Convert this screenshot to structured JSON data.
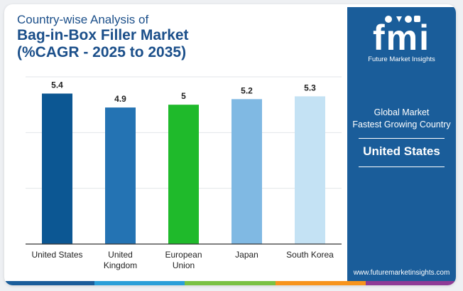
{
  "title": {
    "line1": "Country-wise Analysis of",
    "line2": "Bag-in-Box Filler Market",
    "line3": "(%CAGR - 2025 to 2035)"
  },
  "chart_data": {
    "type": "bar",
    "categories": [
      [
        "United States"
      ],
      [
        "United",
        "Kingdom"
      ],
      [
        "European",
        "Union"
      ],
      [
        "Japan"
      ],
      [
        "South Korea"
      ]
    ],
    "values": [
      5.4,
      4.9,
      5,
      5.2,
      5.3
    ],
    "value_labels": [
      "5.4",
      "4.9",
      "5",
      "5.2",
      "5.3"
    ],
    "colors": [
      "#0c5793",
      "#2473b3",
      "#1fba2b",
      "#80b9e3",
      "#c4e2f4"
    ],
    "ylim": [
      0,
      6
    ],
    "grid": true,
    "title": "",
    "xlabel": "",
    "ylabel": ""
  },
  "side": {
    "logo_text": "fmi",
    "logo_sub": "Future Market Insights",
    "line1": "Global Market",
    "line2": "Fastest Growing Country",
    "country": "United States",
    "url": "www.futuremarketinsights.com"
  },
  "colors": {
    "brand": "#1a5d9a",
    "title": "#1b4f8a",
    "bottom_bar": [
      "#1a5d9a",
      "#2a9fd8",
      "#7ac143",
      "#f7941d",
      "#8e3b96"
    ]
  }
}
